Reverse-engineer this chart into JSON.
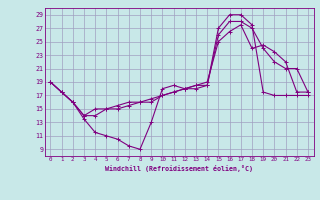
{
  "xlabel": "Windchill (Refroidissement éolien,°C)",
  "bg_color": "#c8e8e8",
  "line_color": "#800080",
  "grid_color": "#a0a0c0",
  "xlim": [
    -0.5,
    23.5
  ],
  "ylim": [
    8,
    30
  ],
  "xticks": [
    0,
    1,
    2,
    3,
    4,
    5,
    6,
    7,
    8,
    9,
    10,
    11,
    12,
    13,
    14,
    15,
    16,
    17,
    18,
    19,
    20,
    21,
    22,
    23
  ],
  "yticks": [
    9,
    11,
    13,
    15,
    17,
    19,
    21,
    23,
    25,
    27,
    29
  ],
  "series": [
    {
      "x": [
        0,
        1,
        2,
        3,
        4,
        5,
        6,
        7,
        8,
        9,
        10,
        11,
        12,
        13,
        14,
        15,
        16,
        17,
        18,
        19,
        20,
        21,
        22,
        23
      ],
      "y": [
        19,
        17.5,
        16,
        13.5,
        11.5,
        11,
        10.5,
        9.5,
        9,
        13,
        18,
        18.5,
        18,
        18,
        18.5,
        27,
        29,
        29,
        27.5,
        17.5,
        17,
        17,
        17,
        17
      ]
    },
    {
      "x": [
        0,
        1,
        2,
        3,
        4,
        5,
        6,
        7,
        8,
        9,
        10,
        11,
        12,
        13,
        14,
        15,
        16,
        17,
        18,
        19,
        20,
        21,
        22,
        23
      ],
      "y": [
        19,
        17.5,
        16,
        14,
        14,
        15,
        15,
        15.5,
        16,
        16,
        17,
        17.5,
        18,
        18.5,
        18.5,
        26,
        28,
        28,
        27,
        24,
        22,
        21,
        21,
        17.5
      ]
    },
    {
      "x": [
        0,
        1,
        2,
        3,
        4,
        5,
        6,
        7,
        8,
        9,
        10,
        11,
        12,
        13,
        14,
        15,
        16,
        17,
        18,
        19,
        20,
        21,
        22,
        23
      ],
      "y": [
        19,
        17.5,
        16,
        14,
        15,
        15,
        15.5,
        16,
        16,
        16.5,
        17,
        17.5,
        18,
        18.5,
        19,
        25,
        26.5,
        27.5,
        24,
        24.5,
        23.5,
        22,
        17.5,
        17.5
      ]
    }
  ]
}
